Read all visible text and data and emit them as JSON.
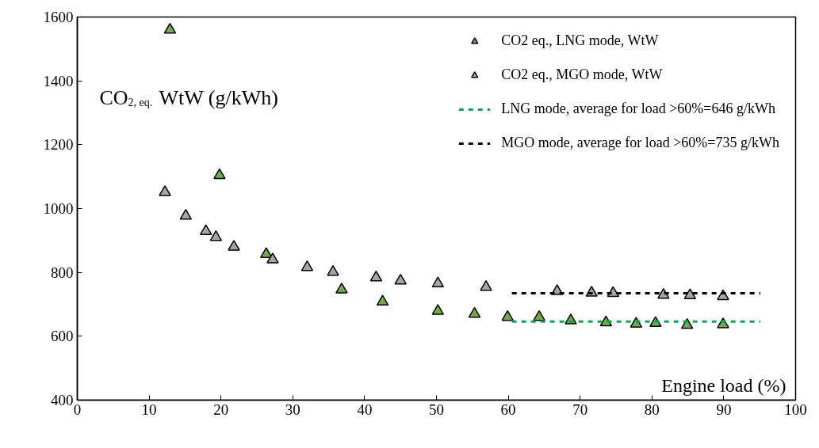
{
  "chart_data": {
    "type": "scatter",
    "ylabel": "CO$_{2, eq.}$ WtW (g/kWh)",
    "xlabel": "Engine load (%)",
    "xlim": [
      0,
      100
    ],
    "xticks": [
      0,
      10,
      20,
      30,
      40,
      50,
      60,
      70,
      80,
      90,
      100
    ],
    "ylim": [
      400,
      1600
    ],
    "yticks": [
      400,
      600,
      800,
      1000,
      1200,
      1400,
      1600
    ],
    "grid": false,
    "legend": "top right",
    "marker": "triangle",
    "series": [
      {
        "name": "CO2 eq., LNG mode, WtW",
        "color": "#70ad47",
        "x": [
          12.9,
          19.8,
          26.3,
          36.8,
          42.5,
          50.2,
          55.3,
          59.9,
          64.3,
          68.7,
          73.6,
          77.8,
          80.5,
          84.9,
          89.9
        ],
        "values": [
          1560,
          1104,
          857,
          746,
          708,
          679,
          670,
          660,
          660,
          649,
          643,
          639,
          641,
          635,
          637
        ]
      },
      {
        "name": "CO2 eq., MGO mode, WtW",
        "color": "#a6a6a6",
        "x": [
          12.2,
          15.1,
          17.9,
          19.3,
          21.8,
          27.2,
          32.0,
          35.6,
          41.6,
          45.0,
          50.2,
          56.9,
          66.8,
          71.6,
          74.6,
          81.6,
          85.3,
          89.9
        ],
        "values": [
          1051,
          977,
          929,
          910,
          880,
          840,
          816,
          801,
          784,
          774,
          765,
          754,
          741,
          736,
          735,
          729,
          728,
          725
        ]
      },
      {
        "name": "LNG mode, average for load >60%=646 g/kWh",
        "type": "line",
        "marker": "none",
        "line_style": "dashed",
        "color": "#00b050",
        "x": [
          60.5,
          95.1
        ],
        "values": [
          646,
          646
        ]
      },
      {
        "name": "MGO mode, average for load >60%=735 g/kWh",
        "type": "line",
        "marker": "none",
        "line_style": "dashed",
        "color": "#000000",
        "x": [
          60.5,
          95.1
        ],
        "values": [
          735,
          735
        ]
      }
    ]
  }
}
